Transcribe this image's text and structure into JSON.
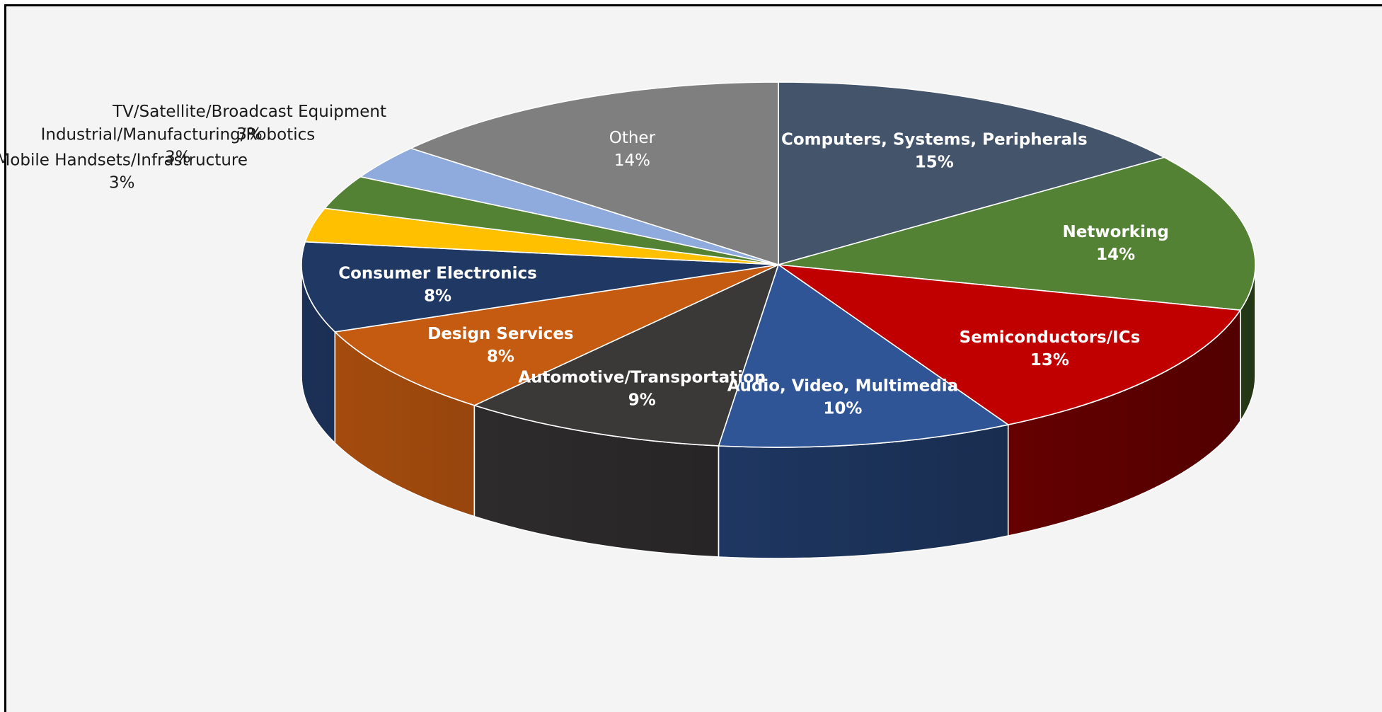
{
  "chart_data": {
    "type": "pie",
    "style": "3d",
    "start_angle_deg": 90,
    "direction": "clockwise",
    "slices": [
      {
        "label": "Computers, Systems, Peripherals",
        "value": 15,
        "value_label": "15%",
        "color": "#44546a"
      },
      {
        "label": "Networking",
        "value": 14,
        "value_label": "14%",
        "color": "#548235"
      },
      {
        "label": "Semiconductors/ICs",
        "value": 13,
        "value_label": "13%",
        "color": "#c00000"
      },
      {
        "label": "Audio, Video, Multimedia",
        "value": 10,
        "value_label": "10%",
        "color": "#2f5597"
      },
      {
        "label": "Automotive/Transportation",
        "value": 9,
        "value_label": "9%",
        "color": "#3b3838"
      },
      {
        "label": "Design Services",
        "value": 8,
        "value_label": "8%",
        "color": "#c55a11"
      },
      {
        "label": "Consumer Electronics",
        "value": 8,
        "value_label": "8%",
        "color": "#203864"
      },
      {
        "label": "Mobile Handsets/Infrastructure",
        "value": 3,
        "value_label": "3%",
        "color": "#ffc000"
      },
      {
        "label": "Industrial/Manufacturing/Robotics",
        "value": 3,
        "value_label": "3%",
        "color": "#548235"
      },
      {
        "label": "TV/Satellite/Broadcast Equipment",
        "value": 3,
        "value_label": "3%",
        "color": "#8faadc"
      },
      {
        "label": "Other",
        "value": 14,
        "value_label": "14%",
        "color": "#7f7f7f"
      }
    ]
  }
}
